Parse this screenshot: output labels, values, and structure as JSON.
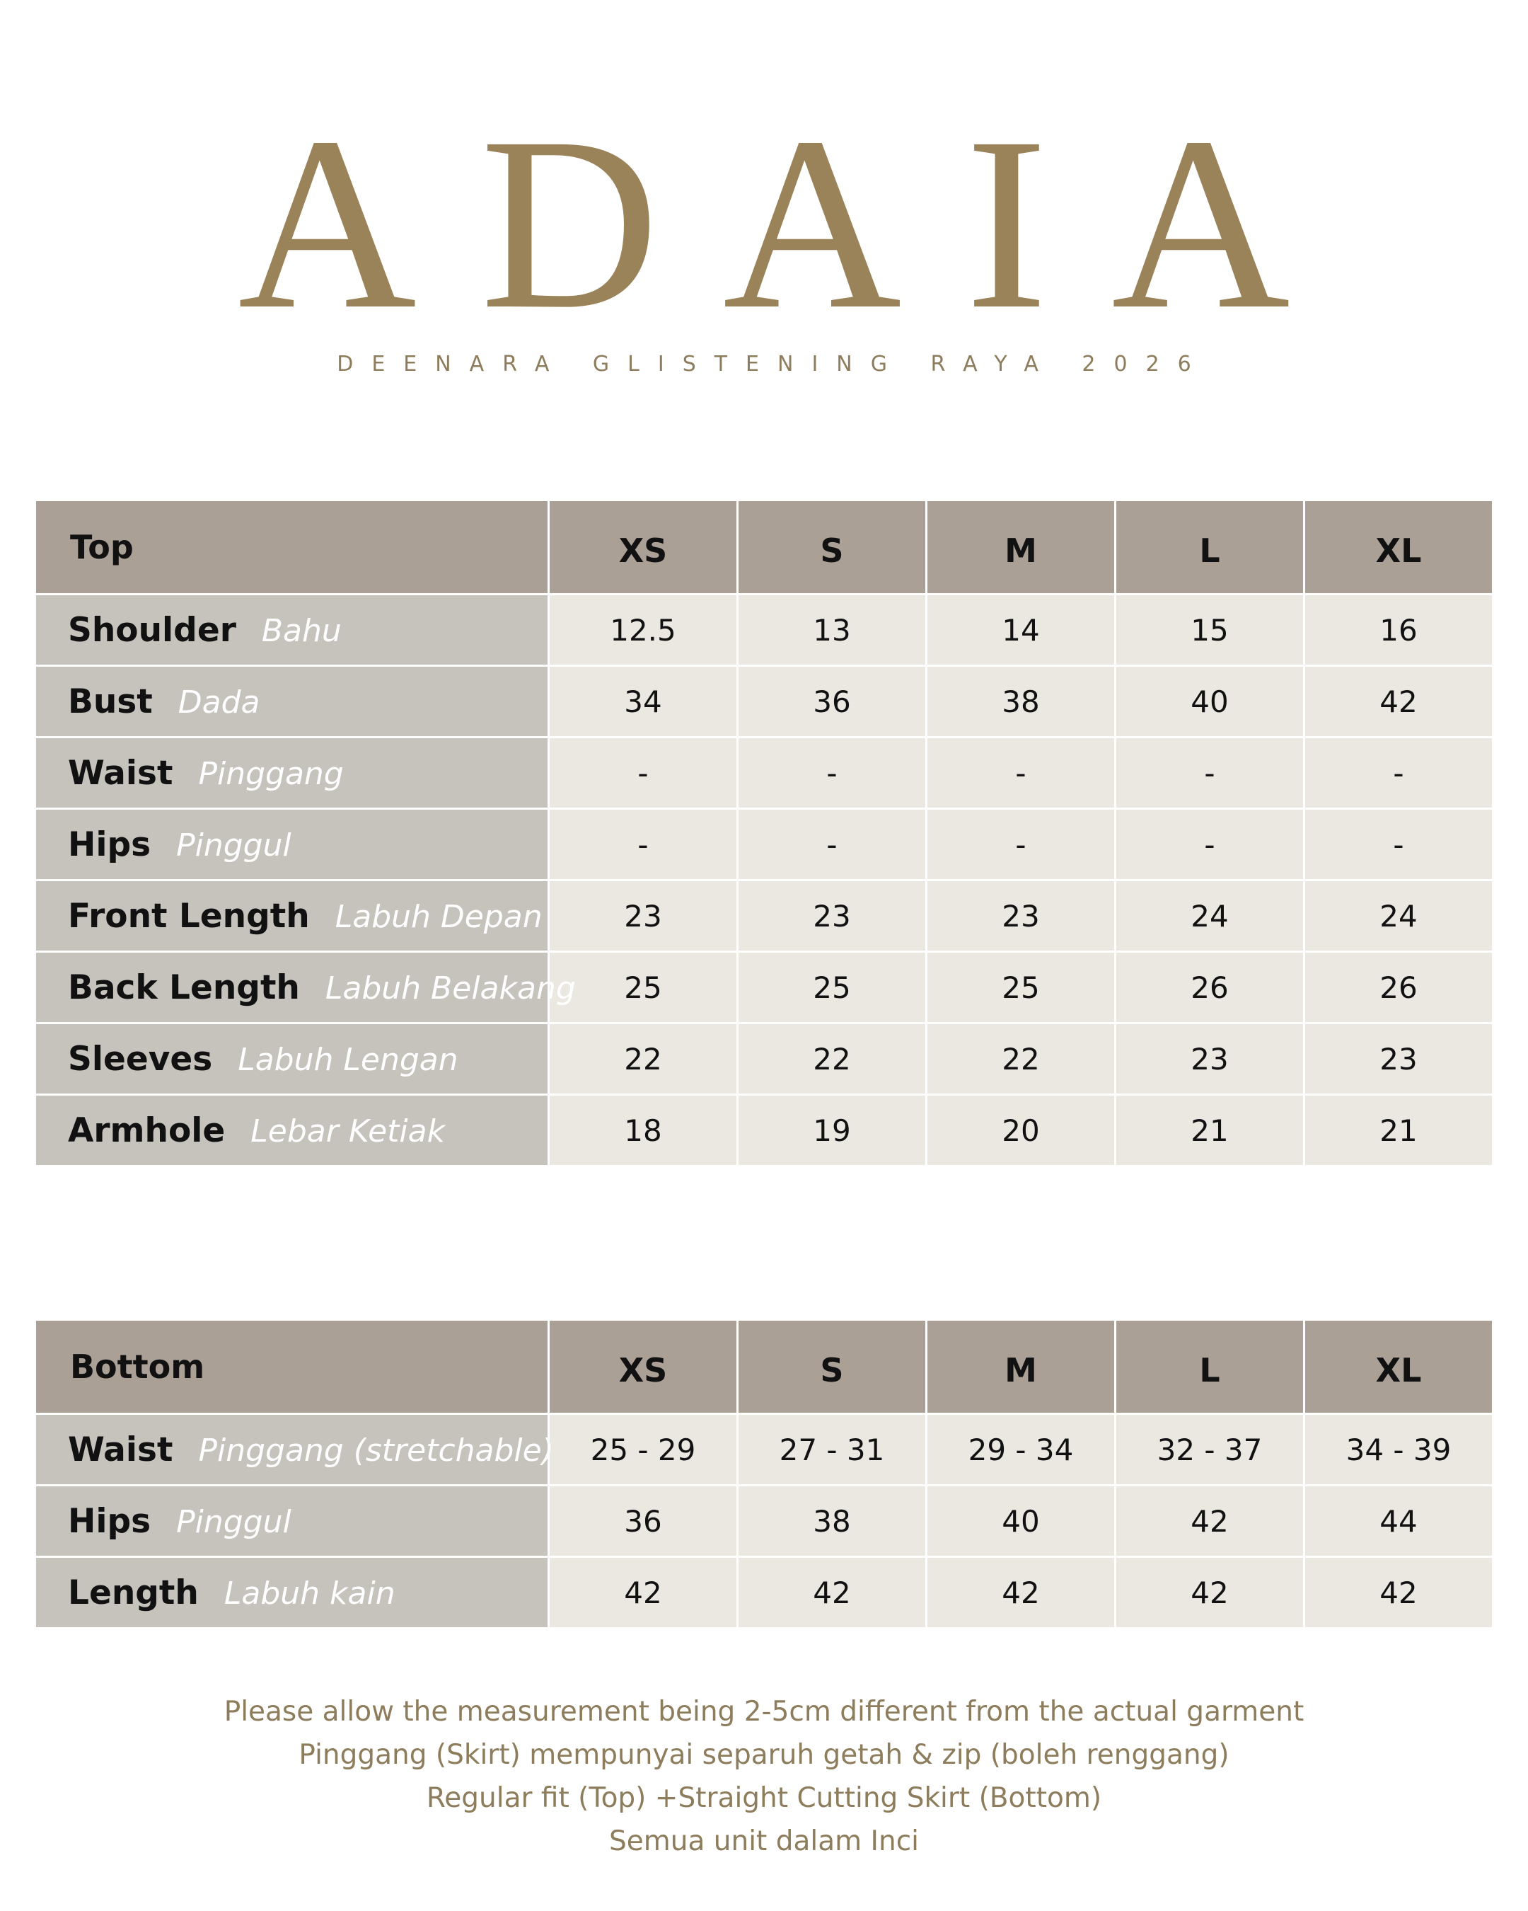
{
  "brand": {
    "title": "ADAIA",
    "subtitle": "DEENARA GLISTENING RAYA 2026"
  },
  "tables": [
    {
      "header": "Top",
      "sizes": [
        "XS",
        "S",
        "M",
        "L",
        "XL"
      ],
      "rows": [
        {
          "label": "Shoulder",
          "label_ms": "Bahu",
          "values": [
            "12.5",
            "13",
            "14",
            "15",
            "16"
          ]
        },
        {
          "label": "Bust",
          "label_ms": "Dada",
          "values": [
            "34",
            "36",
            "38",
            "40",
            "42"
          ]
        },
        {
          "label": "Waist",
          "label_ms": "Pinggang",
          "values": [
            "-",
            "-",
            "-",
            "-",
            "-"
          ]
        },
        {
          "label": "Hips",
          "label_ms": "Pinggul",
          "values": [
            "-",
            "-",
            "-",
            "-",
            "-"
          ]
        },
        {
          "label": "Front Length",
          "label_ms": "Labuh Depan",
          "values": [
            "23",
            "23",
            "23",
            "24",
            "24"
          ]
        },
        {
          "label": "Back Length",
          "label_ms": "Labuh Belakang",
          "values": [
            "25",
            "25",
            "25",
            "26",
            "26"
          ]
        },
        {
          "label": "Sleeves",
          "label_ms": "Labuh Lengan",
          "values": [
            "22",
            "22",
            "22",
            "23",
            "23"
          ]
        },
        {
          "label": "Armhole",
          "label_ms": "Lebar Ketiak",
          "values": [
            "18",
            "19",
            "20",
            "21",
            "21"
          ]
        }
      ]
    },
    {
      "header": "Bottom",
      "sizes": [
        "XS",
        "S",
        "M",
        "L",
        "XL"
      ],
      "rows": [
        {
          "label": "Waist",
          "label_ms": "Pinggang (stretchable)",
          "values": [
            "25 - 29",
            "27 - 31",
            "29 - 34",
            "32 - 37",
            "34 - 39"
          ]
        },
        {
          "label": "Hips",
          "label_ms": "Pinggul",
          "values": [
            "36",
            "38",
            "40",
            "42",
            "44"
          ]
        },
        {
          "label": "Length",
          "label_ms": "Labuh kain",
          "values": [
            "42",
            "42",
            "42",
            "42",
            "42"
          ]
        }
      ]
    }
  ],
  "notes": [
    "Please allow the measurement being 2-5cm different from the actual garment",
    "Pinggang (Skirt) mempunyai separuh getah & zip (boleh renggang)",
    "Regular fit (Top) +Straight Cutting Skirt (Bottom)",
    "Semua unit dalam Inci"
  ]
}
